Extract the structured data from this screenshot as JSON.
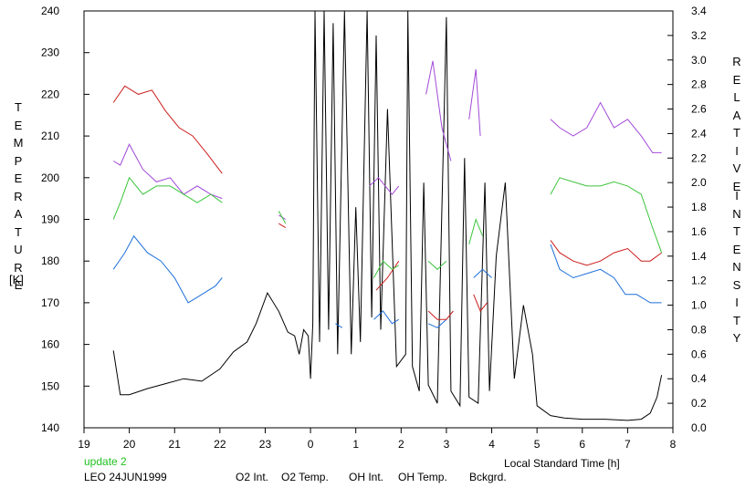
{
  "chart_data": {
    "type": "line",
    "ylabel_left": "TEMPERATURE",
    "ylabel_left_unit": "[K]",
    "ylabel_right": "RELATIVE INTENSITY",
    "xlabel": "Local Standard Time [h]",
    "update_note": "update 2",
    "station_label": "LEO 24JUN1999",
    "x_ticks": [
      "19",
      "20",
      "21",
      "22",
      "23",
      "0",
      "1",
      "2",
      "3",
      "4",
      "5",
      "6",
      "7",
      "8"
    ],
    "ylim_left": [
      140,
      240
    ],
    "yticks_left": [
      "140",
      "150",
      "160",
      "170",
      "180",
      "190",
      "200",
      "210",
      "220",
      "230",
      "240"
    ],
    "ylim_right": [
      0,
      3.4
    ],
    "yticks_right": [
      "0.0",
      "0.2",
      "0.4",
      "0.6",
      "0.8",
      "1.0",
      "1.2",
      "1.4",
      "1.6",
      "1.8",
      "2.0",
      "2.2",
      "2.4",
      "2.6",
      "2.8",
      "3.0",
      "3.2",
      "3.4"
    ],
    "grid": false,
    "legend_position": "bottom",
    "series": [
      {
        "name": "O2 Int.",
        "color": "#1e6fd9",
        "axis": "left",
        "segments": [
          [
            [
              19.65,
              178
            ],
            [
              19.9,
              182
            ],
            [
              20.1,
              186
            ],
            [
              20.4,
              182
            ],
            [
              20.7,
              180
            ],
            [
              21.0,
              176
            ],
            [
              21.3,
              170
            ],
            [
              21.6,
              172
            ],
            [
              21.9,
              174
            ],
            [
              22.05,
              176
            ]
          ],
          [
            [
              24.55,
              165
            ],
            [
              24.7,
              164
            ]
          ],
          [
            [
              25.4,
              166
            ],
            [
              25.6,
              168
            ],
            [
              25.8,
              165
            ],
            [
              25.95,
              166
            ]
          ],
          [
            [
              26.6,
              165
            ],
            [
              26.8,
              164
            ],
            [
              27.0,
              166
            ]
          ],
          [
            [
              27.6,
              176
            ],
            [
              27.8,
              178
            ],
            [
              28.0,
              176
            ]
          ],
          [
            [
              29.3,
              184
            ],
            [
              29.5,
              178
            ],
            [
              29.8,
              176
            ],
            [
              30.1,
              177
            ],
            [
              30.4,
              178
            ],
            [
              30.7,
              176
            ],
            [
              30.95,
              172
            ],
            [
              31.2,
              172
            ],
            [
              31.5,
              170
            ],
            [
              31.75,
              170
            ]
          ]
        ]
      },
      {
        "name": "O2 Temp.",
        "color": "#a24ad8",
        "axis": "left",
        "segments": [
          [
            [
              19.65,
              204
            ],
            [
              19.8,
              203
            ],
            [
              20.0,
              208
            ],
            [
              20.3,
              202
            ],
            [
              20.6,
              199
            ],
            [
              20.9,
              200
            ],
            [
              21.2,
              196
            ],
            [
              21.5,
              198
            ],
            [
              21.8,
              196
            ],
            [
              22.05,
              195
            ]
          ],
          [
            [
              23.3,
              191
            ],
            [
              23.45,
              190
            ]
          ],
          [
            [
              25.3,
              198
            ],
            [
              25.5,
              200
            ],
            [
              25.8,
              196
            ],
            [
              25.95,
              198
            ]
          ],
          [
            [
              26.55,
              220
            ],
            [
              26.7,
              228
            ],
            [
              26.9,
              212
            ],
            [
              27.1,
              204
            ]
          ],
          [
            [
              27.5,
              214
            ],
            [
              27.65,
              226
            ],
            [
              27.75,
              210
            ]
          ],
          [
            [
              29.3,
              214
            ],
            [
              29.5,
              212
            ],
            [
              29.8,
              210
            ],
            [
              30.1,
              212
            ],
            [
              30.4,
              218
            ],
            [
              30.7,
              212
            ],
            [
              31.0,
              214
            ],
            [
              31.3,
              210
            ],
            [
              31.55,
              206
            ],
            [
              31.75,
              206
            ]
          ]
        ]
      },
      {
        "name": "OH Int.",
        "color": "#cc1e1e",
        "axis": "left",
        "segments": [
          [
            [
              19.65,
              218
            ],
            [
              19.9,
              222
            ],
            [
              20.2,
              220
            ],
            [
              20.5,
              221
            ],
            [
              20.8,
              216
            ],
            [
              21.1,
              212
            ],
            [
              21.4,
              210
            ],
            [
              21.7,
              206
            ],
            [
              22.05,
              201
            ]
          ],
          [
            [
              23.3,
              189
            ],
            [
              23.45,
              188
            ]
          ],
          [
            [
              25.45,
              173
            ],
            [
              25.7,
              176
            ],
            [
              25.95,
              180
            ]
          ],
          [
            [
              26.6,
              168
            ],
            [
              26.8,
              166
            ],
            [
              27.0,
              166
            ],
            [
              27.15,
              168
            ]
          ],
          [
            [
              27.6,
              172
            ],
            [
              27.75,
              168
            ],
            [
              27.9,
              170
            ]
          ],
          [
            [
              29.3,
              185
            ],
            [
              29.5,
              182
            ],
            [
              29.8,
              180
            ],
            [
              30.1,
              179
            ],
            [
              30.4,
              180
            ],
            [
              30.7,
              182
            ],
            [
              31.0,
              183
            ],
            [
              31.3,
              180
            ],
            [
              31.5,
              180
            ],
            [
              31.75,
              182
            ]
          ]
        ]
      },
      {
        "name": "OH Temp.",
        "color": "#3cc43c",
        "axis": "left",
        "segments": [
          [
            [
              19.65,
              190
            ],
            [
              19.8,
              194
            ],
            [
              20.0,
              200
            ],
            [
              20.3,
              196
            ],
            [
              20.6,
              198
            ],
            [
              20.9,
              198
            ],
            [
              21.2,
              196
            ],
            [
              21.5,
              194
            ],
            [
              21.8,
              196
            ],
            [
              22.05,
              194
            ]
          ],
          [
            [
              23.3,
              192
            ],
            [
              23.45,
              189
            ]
          ],
          [
            [
              25.4,
              176
            ],
            [
              25.6,
              180
            ],
            [
              25.8,
              178
            ],
            [
              25.95,
              179
            ]
          ],
          [
            [
              26.6,
              180
            ],
            [
              26.8,
              178
            ],
            [
              27.0,
              180
            ]
          ],
          [
            [
              27.5,
              184
            ],
            [
              27.65,
              190
            ],
            [
              27.8,
              186
            ]
          ],
          [
            [
              29.3,
              196
            ],
            [
              29.5,
              200
            ],
            [
              29.8,
              199
            ],
            [
              30.1,
              198
            ],
            [
              30.4,
              198
            ],
            [
              30.7,
              199
            ],
            [
              31.0,
              198
            ],
            [
              31.3,
              196
            ],
            [
              31.55,
              188
            ],
            [
              31.75,
              182
            ]
          ]
        ]
      },
      {
        "name": "Bckgrd.",
        "color": "#000000",
        "axis": "right",
        "segments": [
          [
            [
              19.65,
              0.63
            ],
            [
              19.8,
              0.27
            ],
            [
              20.0,
              0.27
            ],
            [
              20.4,
              0.32
            ],
            [
              20.8,
              0.36
            ],
            [
              21.2,
              0.4
            ],
            [
              21.6,
              0.38
            ],
            [
              22.0,
              0.48
            ],
            [
              22.3,
              0.62
            ],
            [
              22.6,
              0.7
            ],
            [
              22.8,
              0.85
            ],
            [
              23.05,
              1.1
            ],
            [
              23.3,
              0.95
            ],
            [
              23.5,
              0.78
            ],
            [
              23.65,
              0.75
            ],
            [
              23.75,
              0.6
            ],
            [
              23.85,
              0.8
            ],
            [
              23.95,
              0.75
            ],
            [
              24.0,
              0.4
            ],
            [
              24.05,
              0.85
            ],
            [
              24.1,
              3.4
            ],
            [
              24.2,
              0.7
            ],
            [
              24.3,
              3.4
            ],
            [
              24.4,
              0.8
            ],
            [
              24.5,
              3.3
            ],
            [
              24.6,
              0.6
            ],
            [
              24.75,
              3.4
            ],
            [
              24.9,
              0.6
            ],
            [
              25.0,
              1.8
            ],
            [
              25.1,
              0.7
            ],
            [
              25.25,
              3.4
            ],
            [
              25.35,
              0.9
            ],
            [
              25.45,
              3.2
            ],
            [
              25.55,
              0.8
            ],
            [
              25.7,
              2.6
            ],
            [
              25.9,
              0.5
            ],
            [
              26.1,
              0.6
            ],
            [
              26.15,
              3.4
            ],
            [
              26.25,
              0.5
            ],
            [
              26.4,
              0.3
            ],
            [
              26.5,
              2.0
            ],
            [
              26.6,
              0.35
            ],
            [
              26.8,
              0.2
            ],
            [
              27.0,
              3.35
            ],
            [
              27.1,
              0.3
            ],
            [
              27.3,
              0.18
            ],
            [
              27.4,
              2.2
            ],
            [
              27.5,
              0.25
            ],
            [
              27.7,
              0.2
            ],
            [
              27.85,
              2.0
            ],
            [
              27.95,
              0.3
            ],
            [
              28.1,
              1.4
            ],
            [
              28.3,
              2.0
            ],
            [
              28.5,
              0.4
            ],
            [
              28.7,
              1.0
            ],
            [
              28.9,
              0.6
            ],
            [
              29.0,
              0.18
            ],
            [
              29.3,
              0.1
            ],
            [
              29.6,
              0.08
            ],
            [
              30.0,
              0.07
            ],
            [
              30.5,
              0.07
            ],
            [
              31.0,
              0.06
            ],
            [
              31.3,
              0.07
            ],
            [
              31.5,
              0.12
            ],
            [
              31.65,
              0.25
            ],
            [
              31.75,
              0.43
            ]
          ]
        ]
      }
    ]
  }
}
